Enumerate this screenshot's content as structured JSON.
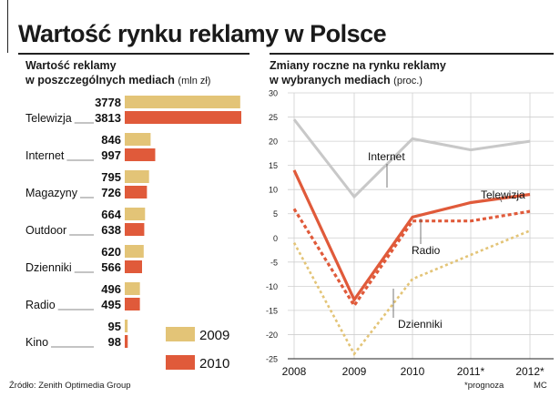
{
  "title": "Wartość rynku reklamy w Polsce",
  "left_subtitle_line1": "Wartość reklamy",
  "left_subtitle_line2": "w poszczególnych mediach",
  "left_unit": "(mln zł)",
  "right_subtitle_line1": "Zmiany roczne na rynku reklamy",
  "right_subtitle_line2": "w wybranych mediach",
  "right_unit": "(proc.)",
  "source": "Źródło: Zenith Optimedia Group",
  "note": "*prognoza",
  "credit": "MC",
  "colors": {
    "y2009": "#e3c477",
    "y2010": "#e05a3a",
    "internet": "#c8c8c8",
    "grid": "#cfcfcf"
  },
  "chart_data": [
    {
      "type": "bar",
      "title": "Wartość reklamy w poszczególnych mediach",
      "unit": "(mln zł)",
      "categories": [
        "Telewizja",
        "Internet",
        "Magazyny",
        "Outdoor",
        "Dzienniki",
        "Radio",
        "Kino"
      ],
      "series": [
        {
          "name": "2009",
          "values": [
            3778,
            846,
            795,
            664,
            620,
            496,
            95
          ]
        },
        {
          "name": "2010",
          "values": [
            3813,
            997,
            726,
            638,
            566,
            495,
            98
          ]
        }
      ],
      "legend": "bottom-right"
    },
    {
      "type": "line",
      "title": "Zmiany roczne na rynku reklamy w wybranych mediach",
      "unit": "(proc.)",
      "x": [
        "2008",
        "2009",
        "2010",
        "2011*",
        "2012*"
      ],
      "ylim": [
        -25,
        30
      ],
      "yticks": [
        30,
        25,
        20,
        15,
        10,
        5,
        0,
        -5,
        -10,
        -15,
        -20,
        -25
      ],
      "grid": true,
      "series": [
        {
          "name": "Internet",
          "values": [
            24.5,
            8.5,
            20.5,
            18.2,
            20
          ]
        },
        {
          "name": "Telewizja",
          "values": [
            14,
            -12.8,
            4.3,
            7.3,
            9
          ]
        },
        {
          "name": "Radio",
          "values": [
            6,
            -14,
            3.5,
            3.5,
            5.5
          ]
        },
        {
          "name": "Dzienniki",
          "values": [
            -1,
            -24,
            -8.5,
            -3.5,
            1.5
          ]
        }
      ]
    }
  ]
}
